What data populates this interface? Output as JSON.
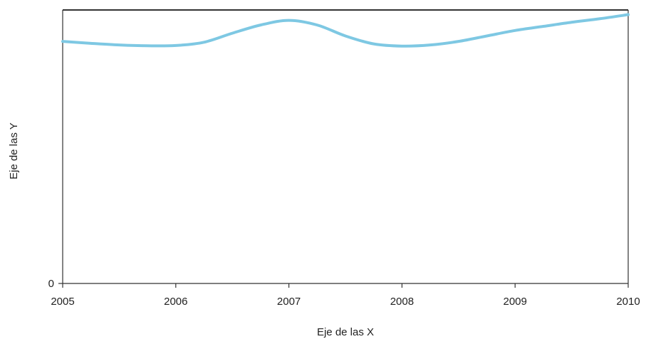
{
  "chart_data": {
    "type": "line",
    "title": "",
    "xlabel": "Eje de las X",
    "ylabel": "Eje de las Y",
    "x": [
      2005,
      2006,
      2007,
      2008,
      2009,
      2010
    ],
    "x_tick_labels": [
      "2005",
      "2006",
      "2007",
      "2008",
      "2009",
      "2010"
    ],
    "y_tick_labels": [
      "0"
    ],
    "ylim": [
      0,
      100
    ],
    "grid": false,
    "legend": "none",
    "series": [
      {
        "x": [
          2005,
          2005.25,
          2005.5,
          2005.75,
          2006,
          2006.25,
          2006.5,
          2006.75,
          2007,
          2007.25,
          2007.5,
          2007.75,
          2008,
          2008.25,
          2008.5,
          2008.75,
          2009,
          2009.25,
          2009.5,
          2009.75,
          2010
        ],
        "values": [
          88.5,
          87.8,
          87.2,
          86.9,
          87.0,
          88.2,
          91.5,
          94.5,
          96.2,
          94.5,
          90.5,
          87.6,
          86.8,
          87.2,
          88.5,
          90.5,
          92.5,
          94.0,
          95.5,
          96.8,
          98.3
        ],
        "color": "#7ec8e3"
      }
    ],
    "colors": {
      "line": "#7ec8e3",
      "axis": "#333333",
      "frame_top": "#333333"
    }
  }
}
